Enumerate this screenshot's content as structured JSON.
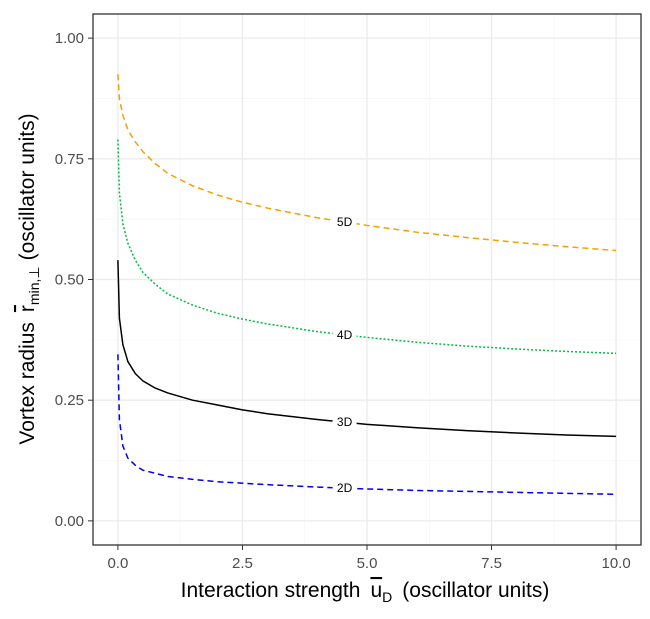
{
  "chart_data": {
    "type": "line",
    "title": "",
    "xlabel": {
      "main": "Interaction strength",
      "symbol": "u",
      "subscript": "D",
      "units": "(oscillator units)"
    },
    "ylabel": {
      "main": "Vortex radius",
      "symbol": "r",
      "subscript": "min,⊥",
      "units": "(oscillator units)"
    },
    "xlim": [
      -0.5,
      10.5
    ],
    "ylim": [
      -0.05,
      1.05
    ],
    "x_ticks": [
      0,
      2.5,
      5,
      7.5,
      10
    ],
    "x_tick_labels": [
      "0.0",
      "2.5",
      "5.0",
      "7.5",
      "10.0"
    ],
    "y_ticks": [
      0,
      0.25,
      0.5,
      0.75,
      1.0
    ],
    "y_tick_labels": [
      "0.00",
      "0.25",
      "0.50",
      "0.75",
      "1.00"
    ],
    "grid": true,
    "legend": "none",
    "series": [
      {
        "name": "2D",
        "label": "2D",
        "color": "#0000ee",
        "dash": "long",
        "x": [
          0.0,
          0.03,
          0.1,
          0.2,
          0.35,
          0.5,
          1.0,
          1.5,
          2.0,
          3.0,
          4.0,
          5.0,
          6.0,
          7.0,
          8.0,
          9.0,
          10.0
        ],
        "y": [
          0.345,
          0.21,
          0.155,
          0.13,
          0.115,
          0.105,
          0.092,
          0.086,
          0.081,
          0.075,
          0.07,
          0.066,
          0.063,
          0.061,
          0.059,
          0.057,
          0.055
        ],
        "label_x": 4.55
      },
      {
        "name": "3D",
        "label": "3D",
        "color": "#000000",
        "dash": "solid",
        "x": [
          0.0,
          0.03,
          0.1,
          0.2,
          0.35,
          0.5,
          0.75,
          1.0,
          1.5,
          2.0,
          2.5,
          3.0,
          4.0,
          5.0,
          6.0,
          7.0,
          8.0,
          9.0,
          10.0
        ],
        "y": [
          0.54,
          0.42,
          0.365,
          0.33,
          0.305,
          0.29,
          0.275,
          0.265,
          0.25,
          0.24,
          0.23,
          0.222,
          0.21,
          0.2,
          0.193,
          0.187,
          0.182,
          0.178,
          0.175
        ],
        "label_x": 4.55
      },
      {
        "name": "4D",
        "label": "4D",
        "color": "#00bb44",
        "dash": "dotted",
        "x": [
          0.0,
          0.03,
          0.1,
          0.2,
          0.35,
          0.5,
          0.75,
          1.0,
          1.5,
          2.0,
          2.5,
          3.0,
          4.0,
          5.0,
          6.0,
          7.0,
          8.0,
          9.0,
          10.0
        ],
        "y": [
          0.79,
          0.68,
          0.615,
          0.575,
          0.54,
          0.515,
          0.49,
          0.47,
          0.447,
          0.43,
          0.418,
          0.408,
          0.392,
          0.38,
          0.37,
          0.362,
          0.356,
          0.351,
          0.347
        ],
        "label_x": 4.55
      },
      {
        "name": "5D",
        "label": "5D",
        "color": "#f5a000",
        "dash": "long",
        "x": [
          0.0,
          0.03,
          0.1,
          0.2,
          0.35,
          0.5,
          0.75,
          1.0,
          1.5,
          2.0,
          2.5,
          3.0,
          4.0,
          5.0,
          6.0,
          7.0,
          8.0,
          9.0,
          10.0
        ],
        "y": [
          0.925,
          0.875,
          0.84,
          0.81,
          0.785,
          0.765,
          0.74,
          0.72,
          0.694,
          0.675,
          0.66,
          0.648,
          0.628,
          0.612,
          0.598,
          0.587,
          0.577,
          0.568,
          0.56
        ],
        "label_x": 4.55
      }
    ]
  }
}
